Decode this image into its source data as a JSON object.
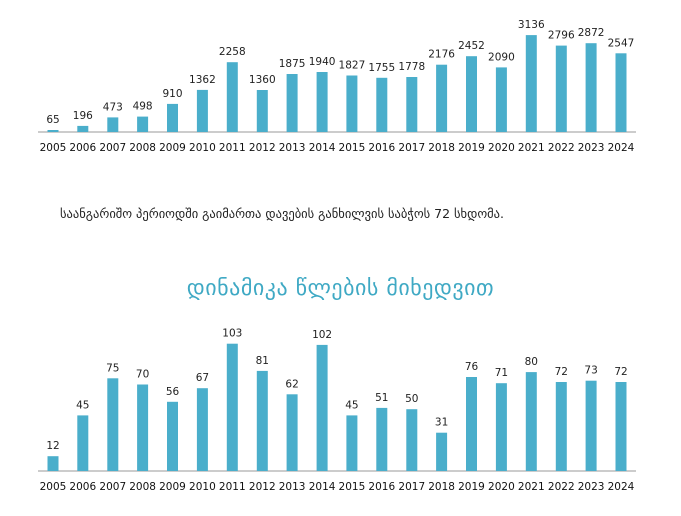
{
  "colors": {
    "bar": "#4aaecb",
    "title": "#3fa9c4",
    "axis": "#9a9a9a"
  },
  "note": "საანგარიშო პერიოდში გაიმართა დავების განხილვის საბჭოს 72 სხდომა.",
  "section_title": "დინამიკა წლების მიხედვით",
  "chart_data": [
    {
      "type": "bar",
      "title": "",
      "xlabel": "",
      "ylabel": "",
      "ylim": [
        0,
        3300
      ],
      "categories": [
        "2005",
        "2006",
        "2007",
        "2008",
        "2009",
        "2010",
        "2011",
        "2012",
        "2013",
        "2014",
        "2015",
        "2016",
        "2017",
        "2018",
        "2019",
        "2020",
        "2021",
        "2022",
        "2023",
        "2024"
      ],
      "values": [
        65,
        196,
        473,
        498,
        910,
        1362,
        2258,
        1360,
        1875,
        1940,
        1827,
        1755,
        1778,
        2176,
        2452,
        2090,
        3136,
        2796,
        2872,
        2547
      ]
    },
    {
      "type": "bar",
      "title": "დინამიკა წლების მიხედვით",
      "xlabel": "",
      "ylabel": "",
      "ylim": [
        0,
        110
      ],
      "categories": [
        "2005",
        "2006",
        "2007",
        "2008",
        "2009",
        "2010",
        "2011",
        "2012",
        "2013",
        "2014",
        "2015",
        "2016",
        "2017",
        "2018",
        "2019",
        "2020",
        "2021",
        "2022",
        "2023",
        "2024"
      ],
      "values": [
        12,
        45,
        75,
        70,
        56,
        67,
        103,
        81,
        62,
        102,
        45,
        51,
        50,
        31,
        76,
        71,
        80,
        72,
        73,
        72
      ]
    }
  ]
}
